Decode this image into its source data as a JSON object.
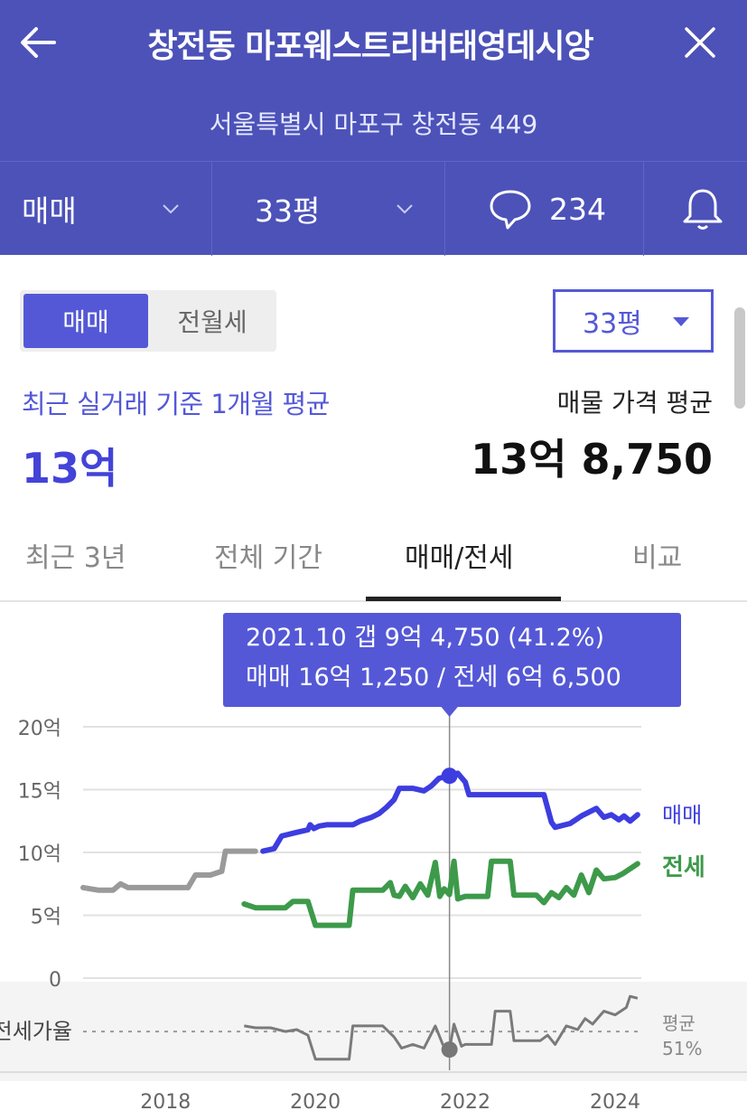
{
  "header": {
    "title": "창전동 마포웨스트리버태영데시앙",
    "address": "서울특별시 마포구 창전동 449",
    "deal_type": "매매",
    "size": "33평",
    "comment_count": "234",
    "icons": [
      "back-arrow-icon",
      "close-icon",
      "chevron-down-icon",
      "speech-bubble-icon",
      "bell-icon"
    ]
  },
  "controls": {
    "segment_active": "매매",
    "segment_inactive": "전월세",
    "size_select": "33평"
  },
  "summary": {
    "recent_label": "최근 실거래 기준 1개월 평균",
    "recent_value": "13억",
    "listing_label": "매물 가격 평균",
    "listing_value": "13억 8,750"
  },
  "tabs": {
    "items": [
      "최근 3년",
      "전체 기간",
      "매매/전세",
      "비교"
    ],
    "active": "매매/전세"
  },
  "colors": {
    "header_bg": "#4c52b8",
    "accent": "#5458d6",
    "sale_line": "#3d3de0",
    "jeonse_line": "#3d9a4a",
    "past_line": "#9a9a9a"
  },
  "tooltip": {
    "line1": "2021.10  갭 9억 4,750 (41.2%)",
    "line2": "매매 16억 1,250 / 전세 6억 6,500"
  },
  "chart_data": {
    "type": "line",
    "title": "",
    "xlabel": "",
    "ylabel": "",
    "ylim": [
      0,
      20
    ],
    "yticks": [
      "20억",
      "15억",
      "10억",
      "5억",
      "0"
    ],
    "xticks": [
      "2018",
      "2020",
      "2022",
      "2024"
    ],
    "xrange": [
      2016.9,
      2024.35
    ],
    "grid": true,
    "highlight_x": 2021.79,
    "series": [
      {
        "name": "매매",
        "color": "#3d3de0",
        "points": [
          [
            2019.3,
            10.1
          ],
          [
            2019.45,
            10.3
          ],
          [
            2019.55,
            11.3
          ],
          [
            2019.75,
            11.6
          ],
          [
            2019.9,
            11.8
          ],
          [
            2019.93,
            12.2
          ],
          [
            2019.98,
            11.9
          ],
          [
            2020.05,
            12.1
          ],
          [
            2020.15,
            12.2
          ],
          [
            2020.5,
            12.2
          ],
          [
            2020.6,
            12.5
          ],
          [
            2020.75,
            12.8
          ],
          [
            2020.85,
            13.1
          ],
          [
            2020.95,
            13.6
          ],
          [
            2021.05,
            14.2
          ],
          [
            2021.12,
            15.1
          ],
          [
            2021.3,
            15.1
          ],
          [
            2021.45,
            14.9
          ],
          [
            2021.55,
            15.3
          ],
          [
            2021.65,
            15.9
          ],
          [
            2021.79,
            16.1
          ],
          [
            2021.9,
            16.3
          ],
          [
            2022.0,
            15.6
          ],
          [
            2022.05,
            14.6
          ],
          [
            2022.3,
            14.6
          ],
          [
            2022.6,
            14.6
          ],
          [
            2022.9,
            14.6
          ],
          [
            2023.05,
            14.6
          ],
          [
            2023.15,
            12.4
          ],
          [
            2023.2,
            12.0
          ],
          [
            2023.4,
            12.3
          ],
          [
            2023.55,
            12.9
          ],
          [
            2023.75,
            13.5
          ],
          [
            2023.85,
            12.8
          ],
          [
            2023.95,
            13.0
          ],
          [
            2024.05,
            12.6
          ],
          [
            2024.12,
            12.9
          ],
          [
            2024.2,
            12.5
          ],
          [
            2024.3,
            13.0
          ]
        ]
      },
      {
        "name": "전세",
        "color": "#3d9a4a",
        "points": [
          [
            2019.05,
            5.9
          ],
          [
            2019.2,
            5.6
          ],
          [
            2019.6,
            5.6
          ],
          [
            2019.7,
            6.1
          ],
          [
            2019.9,
            6.1
          ],
          [
            2020.0,
            4.2
          ],
          [
            2020.45,
            4.2
          ],
          [
            2020.5,
            7.0
          ],
          [
            2020.9,
            7.0
          ],
          [
            2021.0,
            7.6
          ],
          [
            2021.05,
            6.6
          ],
          [
            2021.12,
            6.5
          ],
          [
            2021.2,
            7.3
          ],
          [
            2021.3,
            6.4
          ],
          [
            2021.4,
            7.5
          ],
          [
            2021.5,
            6.6
          ],
          [
            2021.6,
            9.2
          ],
          [
            2021.66,
            6.5
          ],
          [
            2021.72,
            7.1
          ],
          [
            2021.79,
            6.65
          ],
          [
            2021.85,
            9.3
          ],
          [
            2021.9,
            6.3
          ],
          [
            2022.0,
            6.5
          ],
          [
            2022.3,
            6.5
          ],
          [
            2022.35,
            9.3
          ],
          [
            2022.6,
            9.3
          ],
          [
            2022.65,
            6.6
          ],
          [
            2022.95,
            6.6
          ],
          [
            2023.05,
            6.0
          ],
          [
            2023.15,
            6.8
          ],
          [
            2023.25,
            6.4
          ],
          [
            2023.35,
            7.2
          ],
          [
            2023.45,
            6.6
          ],
          [
            2023.55,
            8.2
          ],
          [
            2023.65,
            6.8
          ],
          [
            2023.75,
            8.6
          ],
          [
            2023.85,
            7.9
          ],
          [
            2024.0,
            8.0
          ],
          [
            2024.1,
            8.3
          ],
          [
            2024.3,
            9.1
          ]
        ]
      },
      {
        "name": "",
        "color": "#9a9a9a",
        "points": [
          [
            2016.9,
            7.2
          ],
          [
            2017.1,
            7.0
          ],
          [
            2017.3,
            7.0
          ],
          [
            2017.4,
            7.5
          ],
          [
            2017.5,
            7.2
          ],
          [
            2017.8,
            7.2
          ],
          [
            2018.1,
            7.2
          ],
          [
            2018.3,
            7.2
          ],
          [
            2018.4,
            8.2
          ],
          [
            2018.6,
            8.2
          ],
          [
            2018.75,
            8.5
          ],
          [
            2018.8,
            10.1
          ],
          [
            2019.2,
            10.1
          ]
        ]
      }
    ],
    "ratio_panel": {
      "label": "전세가율",
      "average_label": "평균",
      "average_value": "51%",
      "average_percent": 51,
      "points_percent": [
        [
          2019.05,
          54
        ],
        [
          2019.2,
          53
        ],
        [
          2019.4,
          53
        ],
        [
          2019.6,
          51
        ],
        [
          2019.75,
          52
        ],
        [
          2019.9,
          49
        ],
        [
          2020.0,
          36
        ],
        [
          2020.45,
          36
        ],
        [
          2020.5,
          54
        ],
        [
          2020.9,
          54
        ],
        [
          2021.05,
          48
        ],
        [
          2021.15,
          42
        ],
        [
          2021.3,
          44
        ],
        [
          2021.45,
          42
        ],
        [
          2021.6,
          54
        ],
        [
          2021.7,
          44
        ],
        [
          2021.79,
          41.2
        ],
        [
          2021.85,
          55
        ],
        [
          2021.95,
          43
        ],
        [
          2022.0,
          44
        ],
        [
          2022.35,
          44
        ],
        [
          2022.4,
          62
        ],
        [
          2022.6,
          62
        ],
        [
          2022.65,
          46
        ],
        [
          2023.0,
          46
        ],
        [
          2023.1,
          49
        ],
        [
          2023.2,
          44
        ],
        [
          2023.35,
          54
        ],
        [
          2023.5,
          52
        ],
        [
          2023.6,
          58
        ],
        [
          2023.7,
          55
        ],
        [
          2023.85,
          62
        ],
        [
          2024.0,
          60
        ],
        [
          2024.15,
          64
        ],
        [
          2024.2,
          70
        ],
        [
          2024.3,
          69
        ]
      ]
    },
    "series_labels": [
      "매매",
      "전세"
    ]
  }
}
